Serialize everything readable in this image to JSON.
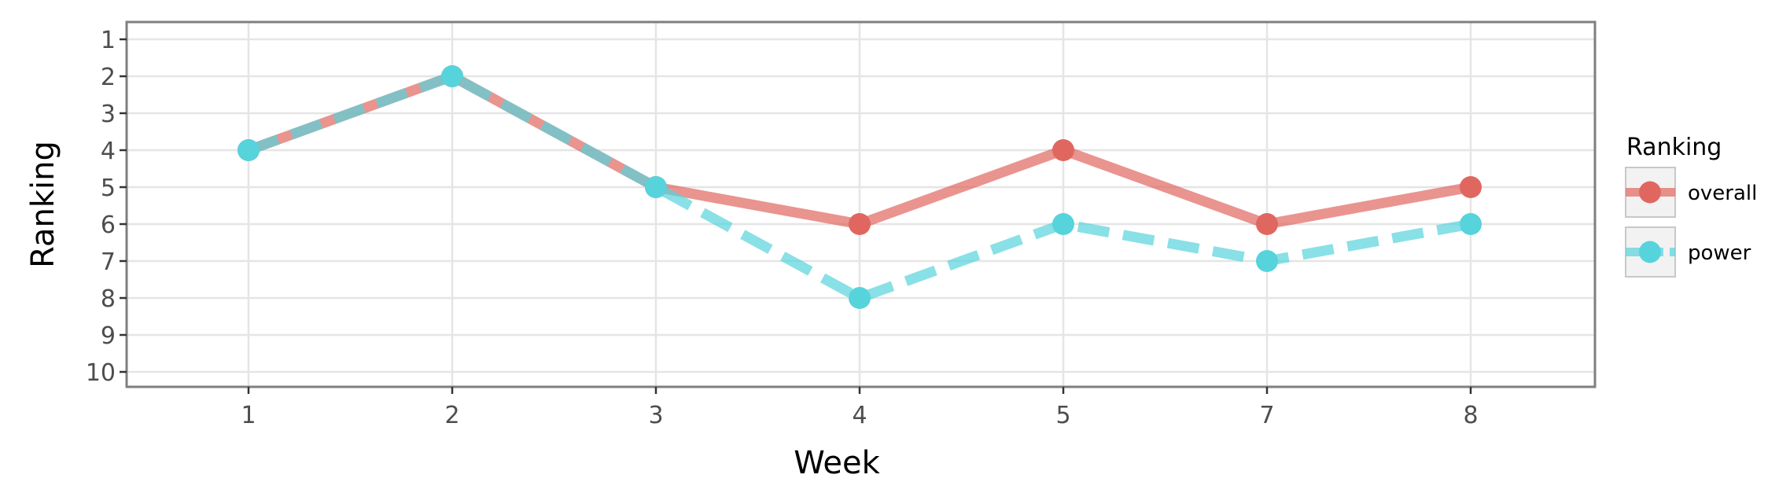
{
  "chart_data": {
    "type": "line",
    "title": "",
    "xlabel": "Week",
    "ylabel": "Ranking",
    "categories": [
      "1",
      "2",
      "3",
      "4",
      "5",
      "7",
      "8"
    ],
    "y_ticks": [
      "1",
      "2",
      "3",
      "4",
      "5",
      "6",
      "7",
      "8",
      "9",
      "10"
    ],
    "ylim": [
      1,
      10
    ],
    "y_reversed": true,
    "grid": true,
    "legend": {
      "title": "Ranking",
      "position": "right"
    },
    "series": [
      {
        "name": "overall",
        "values": [
          4,
          2,
          5,
          6,
          4,
          6,
          5
        ],
        "line_style": "solid",
        "color": "#E06760"
      },
      {
        "name": "power",
        "values": [
          4,
          2,
          5,
          8,
          6,
          7,
          6
        ],
        "line_style": "dashed",
        "color": "#57D3DC"
      }
    ]
  }
}
